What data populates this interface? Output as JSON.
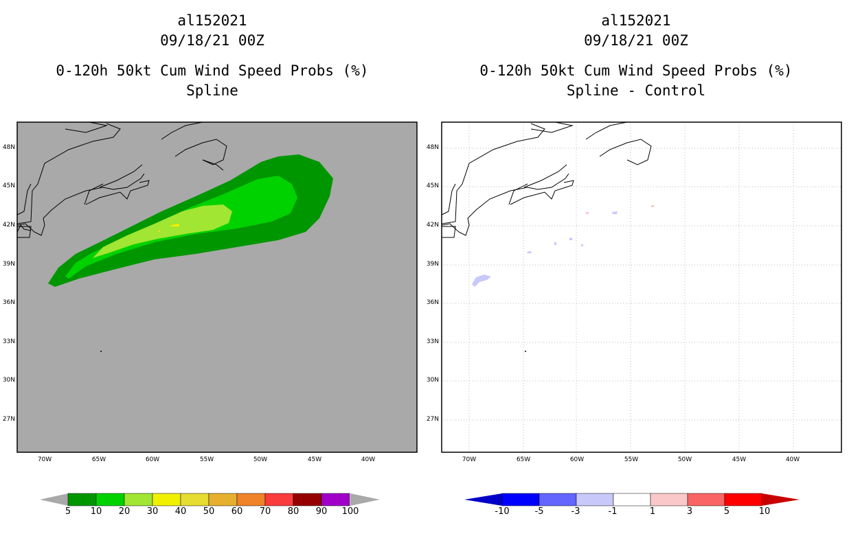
{
  "left_panel": {
    "storm_id": "al152021",
    "datetime": "09/18/21 00Z",
    "product": "0-120h 50kt Cum Wind Speed Probs (%)",
    "subtitle": "Spline",
    "colors": {
      "background": "#a9a9a9",
      "c5": "#009600",
      "c10": "#00d200",
      "c20": "#a0e632",
      "c30": "#e6dc32",
      "c40": "#f0f000"
    },
    "colorbar": {
      "labels": [
        "5",
        "10",
        "20",
        "30",
        "40",
        "50",
        "60",
        "70",
        "80",
        "90",
        "100"
      ],
      "colors": [
        "#009600",
        "#00d200",
        "#a0e632",
        "#f0f000",
        "#e6dc32",
        "#e6af2d",
        "#f08228",
        "#fa3c3c",
        "#960000",
        "#a000c8"
      ]
    }
  },
  "right_panel": {
    "storm_id": "al152021",
    "datetime": "09/18/21 00Z",
    "product": "0-120h 50kt Cum Wind Speed Probs (%)",
    "subtitle": "Spline - Control",
    "colors": {
      "background": "#ffffff",
      "neg_small": "#c8c8fa",
      "pos_small": "#fac8c8"
    },
    "colorbar": {
      "labels": [
        "-10",
        "-5",
        "-3",
        "-1",
        "1",
        "3",
        "5",
        "10"
      ],
      "colors": [
        "#0000c8",
        "#0000ff",
        "#6464ff",
        "#c8c8fa",
        "#ffffff",
        "#fac8c8",
        "#fa6464",
        "#ff0000",
        "#c80000"
      ]
    }
  },
  "axes": {
    "lat_labels": [
      "48N",
      "45N",
      "42N",
      "39N",
      "36N",
      "33N",
      "30N",
      "27N"
    ],
    "lon_labels": [
      "70W",
      "65W",
      "60W",
      "55W",
      "50W",
      "45W",
      "40W"
    ]
  }
}
